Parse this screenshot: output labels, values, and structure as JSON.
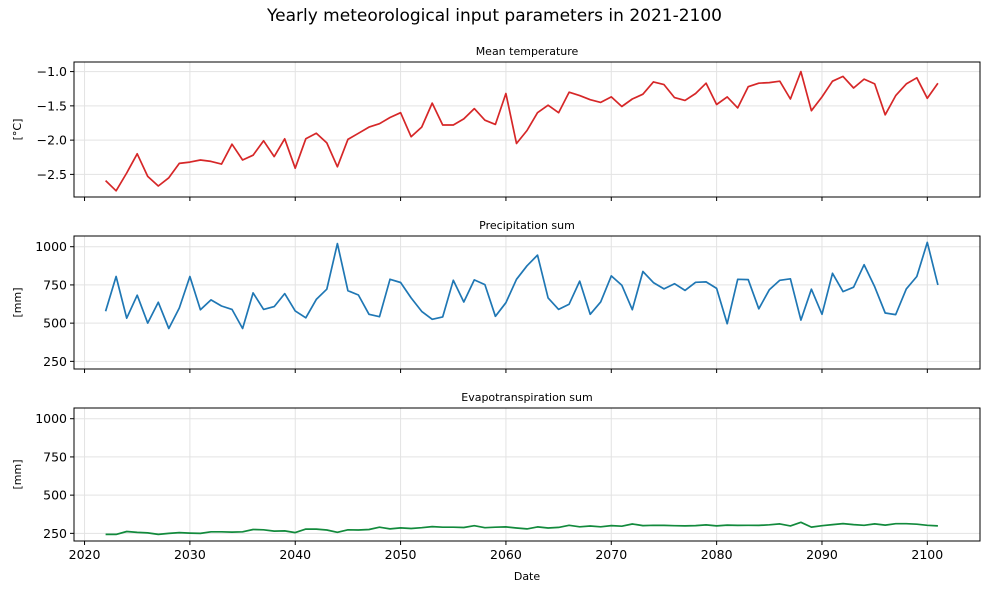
{
  "figure": {
    "title": "Yearly meteorological input parameters in 2021-2100",
    "xlabel": "Date"
  },
  "chart_data": [
    {
      "type": "line",
      "title": "Mean temperature",
      "ylabel": "[°C]",
      "color": "#d62728",
      "x_ticks": [
        2020,
        2030,
        2040,
        2050,
        2060,
        2070,
        2080,
        2090,
        2100
      ],
      "y_ticks": [
        -2.5,
        -2.0,
        -1.5,
        -1.0
      ],
      "y_tick_labels": [
        "−2.5",
        "−2.0",
        "−1.5",
        "−1.0"
      ],
      "xlim": [
        2019,
        2105
      ],
      "ylim": [
        -2.83,
        -0.86
      ],
      "show_x_tick_labels": false,
      "x": [
        2022,
        2023,
        2024,
        2025,
        2026,
        2027,
        2028,
        2029,
        2030,
        2031,
        2032,
        2033,
        2034,
        2035,
        2036,
        2037,
        2038,
        2039,
        2040,
        2041,
        2042,
        2043,
        2044,
        2045,
        2046,
        2047,
        2048,
        2049,
        2050,
        2051,
        2052,
        2053,
        2054,
        2055,
        2056,
        2057,
        2058,
        2059,
        2060,
        2061,
        2062,
        2063,
        2064,
        2065,
        2066,
        2067,
        2068,
        2069,
        2070,
        2071,
        2072,
        2073,
        2074,
        2075,
        2076,
        2077,
        2078,
        2079,
        2080,
        2081,
        2082,
        2083,
        2084,
        2085,
        2086,
        2087,
        2088,
        2089,
        2090,
        2091,
        2092,
        2093,
        2094,
        2095,
        2096,
        2097,
        2098,
        2099,
        2100,
        2101
      ],
      "values": [
        -2.59,
        -2.74,
        -2.48,
        -2.2,
        -2.53,
        -2.67,
        -2.55,
        -2.34,
        -2.32,
        -2.29,
        -2.31,
        -2.35,
        -2.06,
        -2.29,
        -2.22,
        -2.01,
        -2.24,
        -1.98,
        -2.41,
        -1.98,
        -1.9,
        -2.04,
        -2.39,
        -1.99,
        -1.9,
        -1.81,
        -1.76,
        -1.67,
        -1.6,
        -1.95,
        -1.81,
        -1.46,
        -1.78,
        -1.78,
        -1.69,
        -1.54,
        -1.71,
        -1.77,
        -1.32,
        -2.05,
        -1.86,
        -1.6,
        -1.49,
        -1.6,
        -1.3,
        -1.35,
        -1.41,
        -1.45,
        -1.37,
        -1.51,
        -1.4,
        -1.33,
        -1.15,
        -1.19,
        -1.38,
        -1.42,
        -1.32,
        -1.17,
        -1.48,
        -1.37,
        -1.53,
        -1.22,
        -1.17,
        -1.16,
        -1.14,
        -1.4,
        -1.0,
        -1.57,
        -1.37,
        -1.14,
        -1.07,
        -1.24,
        -1.11,
        -1.18,
        -1.63,
        -1.35,
        -1.18,
        -1.09,
        -1.39,
        -1.17
      ]
    },
    {
      "type": "line",
      "title": "Precipitation sum",
      "ylabel": "[mm]",
      "color": "#1f77b4",
      "x_ticks": [
        2020,
        2030,
        2040,
        2050,
        2060,
        2070,
        2080,
        2090,
        2100
      ],
      "y_ticks": [
        250,
        500,
        750,
        1000
      ],
      "y_tick_labels": [
        "250",
        "500",
        "750",
        "1000"
      ],
      "xlim": [
        2019,
        2105
      ],
      "ylim": [
        200,
        1070
      ],
      "show_x_tick_labels": false,
      "x": [
        2022,
        2023,
        2024,
        2025,
        2026,
        2027,
        2028,
        2029,
        2030,
        2031,
        2032,
        2033,
        2034,
        2035,
        2036,
        2037,
        2038,
        2039,
        2040,
        2041,
        2042,
        2043,
        2044,
        2045,
        2046,
        2047,
        2048,
        2049,
        2050,
        2051,
        2052,
        2053,
        2054,
        2055,
        2056,
        2057,
        2058,
        2059,
        2060,
        2061,
        2062,
        2063,
        2064,
        2065,
        2066,
        2067,
        2068,
        2069,
        2070,
        2071,
        2072,
        2073,
        2074,
        2075,
        2076,
        2077,
        2078,
        2079,
        2080,
        2081,
        2082,
        2083,
        2084,
        2085,
        2086,
        2087,
        2088,
        2089,
        2090,
        2091,
        2092,
        2093,
        2094,
        2095,
        2096,
        2097,
        2098,
        2099,
        2100,
        2101
      ],
      "values": [
        578,
        805,
        532,
        683,
        500,
        636,
        465,
        599,
        805,
        587,
        652,
        612,
        590,
        465,
        698,
        590,
        608,
        693,
        580,
        535,
        655,
        722,
        1020,
        712,
        684,
        558,
        542,
        787,
        766,
        665,
        577,
        525,
        541,
        780,
        638,
        783,
        752,
        545,
        634,
        787,
        875,
        945,
        665,
        590,
        624,
        775,
        558,
        639,
        809,
        748,
        588,
        838,
        765,
        724,
        758,
        714,
        767,
        770,
        727,
        496,
        787,
        785,
        594,
        718,
        780,
        790,
        520,
        722,
        558,
        826,
        706,
        735,
        882,
        738,
        566,
        556,
        724,
        805,
        1028,
        750
      ]
    },
    {
      "type": "line",
      "title": "Evapotranspiration sum",
      "ylabel": "[mm]",
      "color": "#128a3c",
      "x_ticks": [
        2020,
        2030,
        2040,
        2050,
        2060,
        2070,
        2080,
        2090,
        2100
      ],
      "x_tick_labels": [
        "2020",
        "2030",
        "2040",
        "2050",
        "2060",
        "2070",
        "2080",
        "2090",
        "2100"
      ],
      "y_ticks": [
        250,
        500,
        750,
        1000
      ],
      "y_tick_labels": [
        "250",
        "500",
        "750",
        "1000"
      ],
      "xlim": [
        2019,
        2105
      ],
      "ylim": [
        200,
        1070
      ],
      "show_x_tick_labels": true,
      "x": [
        2022,
        2023,
        2024,
        2025,
        2026,
        2027,
        2028,
        2029,
        2030,
        2031,
        2032,
        2033,
        2034,
        2035,
        2036,
        2037,
        2038,
        2039,
        2040,
        2041,
        2042,
        2043,
        2044,
        2045,
        2046,
        2047,
        2048,
        2049,
        2050,
        2051,
        2052,
        2053,
        2054,
        2055,
        2056,
        2057,
        2058,
        2059,
        2060,
        2061,
        2062,
        2063,
        2064,
        2065,
        2066,
        2067,
        2068,
        2069,
        2070,
        2071,
        2072,
        2073,
        2074,
        2075,
        2076,
        2077,
        2078,
        2079,
        2080,
        2081,
        2082,
        2083,
        2084,
        2085,
        2086,
        2087,
        2088,
        2089,
        2090,
        2091,
        2092,
        2093,
        2094,
        2095,
        2096,
        2097,
        2098,
        2099,
        2100,
        2101
      ],
      "values": [
        243,
        243,
        262,
        256,
        253,
        243,
        250,
        255,
        252,
        250,
        260,
        260,
        258,
        260,
        275,
        273,
        265,
        266,
        255,
        278,
        278,
        272,
        257,
        273,
        272,
        275,
        290,
        279,
        286,
        282,
        287,
        294,
        290,
        290,
        288,
        300,
        287,
        290,
        292,
        285,
        279,
        292,
        285,
        289,
        303,
        293,
        298,
        293,
        301,
        297,
        311,
        301,
        303,
        302,
        300,
        299,
        301,
        305,
        299,
        304,
        302,
        303,
        302,
        306,
        312,
        299,
        322,
        291,
        300,
        307,
        314,
        307,
        303,
        312,
        304,
        313,
        313,
        310,
        303,
        299
      ]
    }
  ]
}
